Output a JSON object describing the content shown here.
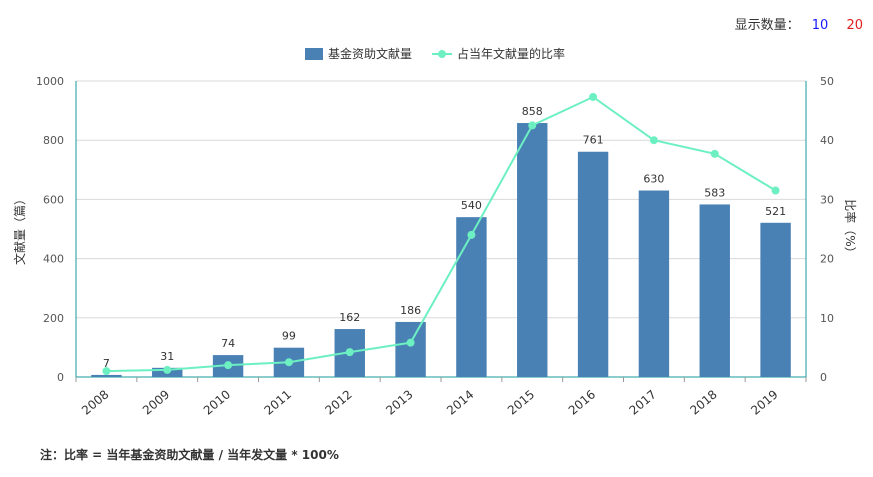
{
  "display_count": {
    "label": "显示数量：",
    "options": [
      "10",
      "20"
    ]
  },
  "note": "注：比率 = 当年基金资助文献量 / 当年发文量 * 100%",
  "colors": {
    "bar": "#4a81b5",
    "line": "#6cf0c2",
    "grid": "#d9d9d9",
    "axis": "#1a9a9a"
  },
  "chart_data": {
    "type": "bar",
    "categories": [
      "2008",
      "2009",
      "2010",
      "2011",
      "2012",
      "2013",
      "2014",
      "2015",
      "2016",
      "2017",
      "2018",
      "2019"
    ],
    "series": [
      {
        "name": "基金资助文献量",
        "type": "bar",
        "axis": "left",
        "values": [
          7,
          31,
          74,
          99,
          162,
          186,
          540,
          858,
          761,
          630,
          583,
          521
        ]
      },
      {
        "name": "占当年文献量的比率",
        "type": "line",
        "axis": "right",
        "values": [
          1.0,
          1.2,
          2.0,
          2.5,
          4.2,
          5.8,
          24.0,
          42.5,
          47.3,
          40.0,
          37.7,
          31.5
        ]
      }
    ],
    "ylabel": "文献量（篇）",
    "y2label": "比率（%）",
    "ylim": [
      0,
      1000
    ],
    "y2lim": [
      0,
      50
    ],
    "yticks": [
      "0",
      "200",
      "400",
      "600",
      "800",
      "1000"
    ],
    "y2ticks": [
      "0",
      "10",
      "20",
      "30",
      "40",
      "50"
    ],
    "legend": "top-center",
    "grid": true
  }
}
